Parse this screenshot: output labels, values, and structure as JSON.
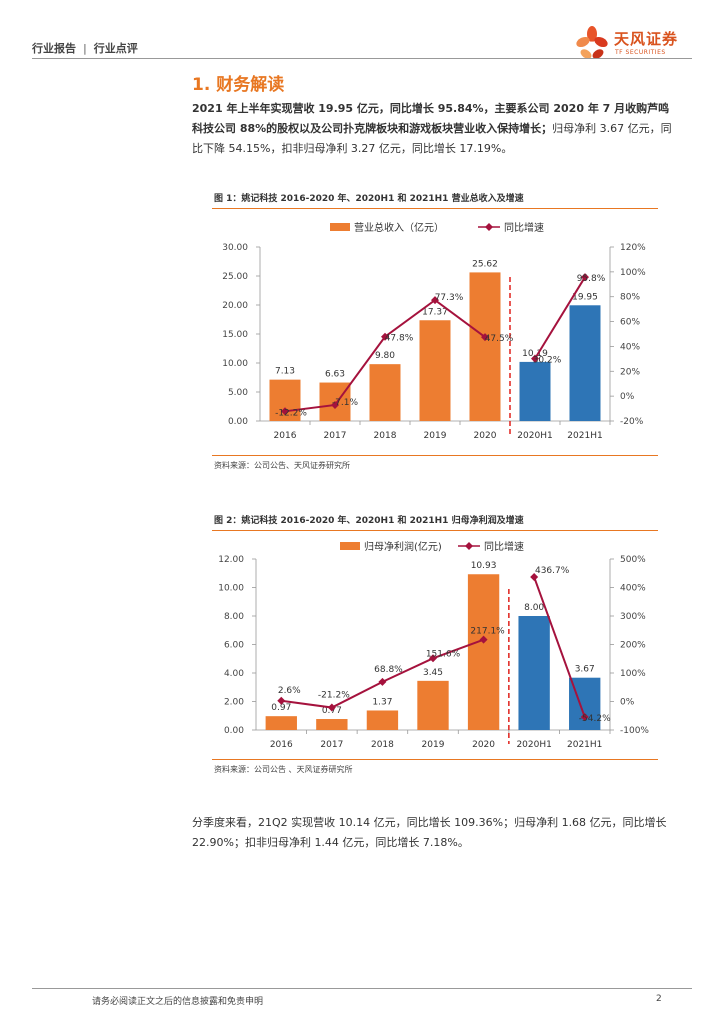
{
  "header": {
    "breadcrumb_1": "行业报告",
    "separator": "|",
    "breadcrumb_2": "行业点评",
    "logo_cn": "天风证券",
    "logo_en": "TF SECURITIES"
  },
  "section": {
    "title": "1. 财务解读",
    "para1_bold": "2021 年上半年实现营收 19.95 亿元，同比增长 95.84%，主要系公司 2020 年 7 月收购芦鸣科技公司 88%的股权以及公司扑克牌板块和游戏板块营业收入保持增长；",
    "para1_normal": "归母净利 3.67 亿元，同比下降 54.15%，扣非归母净利 3.27 亿元，同比增长 17.19%。",
    "para2": "分季度来看，21Q2 实现营收 10.14 亿元，同比增长 109.36%；归母净利 1.68 亿元，同比增长 22.90%；扣非归母净利 1.44 亿元，同比增长 7.18%。"
  },
  "figure1": {
    "title": "图 1：姚记科技 2016-2020 年、2020H1 和 2021H1 营业总收入及增速",
    "source": "资料来源：公司公告、天风证券研究所"
  },
  "figure2": {
    "title": "图 2：姚记科技 2016-2020 年、2020H1 和 2021H1 归母净利润及增速",
    "source": "资料来源：公司公告 、天风证券研究所"
  },
  "colors": {
    "orange": "#ED7D31",
    "blue": "#2E75B6",
    "line": "#A5123D",
    "divider": "#E0201B"
  },
  "chart_data": [
    {
      "type": "bar",
      "categories": [
        "2016",
        "2017",
        "2018",
        "2019",
        "2020",
        "2020H1",
        "2021H1"
      ],
      "series": [
        {
          "name": "营业总收入（亿元）",
          "values": [
            7.13,
            6.63,
            9.8,
            17.37,
            25.62,
            10.19,
            19.95
          ],
          "labels": [
            "7.13",
            "6.63",
            "9.80",
            "17.37",
            "25.62",
            "10.19",
            "19.95"
          ]
        },
        {
          "name": "同比增速",
          "type": "line",
          "axis": "right",
          "values": [
            -12.2,
            -7.1,
            47.8,
            77.3,
            47.5,
            30.2,
            95.8
          ],
          "labels": [
            "-12.2%",
            "-7.1%",
            "47.8%",
            "77.3%",
            "47.5%",
            "30.2%",
            "95.8%"
          ]
        }
      ],
      "ylim": [
        0,
        30
      ],
      "yticks": [
        "0.00",
        "5.00",
        "10.00",
        "15.00",
        "20.00",
        "25.00",
        "30.00"
      ],
      "y2lim": [
        -20,
        120
      ],
      "y2ticks": [
        "-20%",
        "0%",
        "20%",
        "40%",
        "60%",
        "80%",
        "100%",
        "120%"
      ],
      "legend": [
        "营业总收入（亿元）",
        "同比增速"
      ]
    },
    {
      "type": "bar",
      "categories": [
        "2016",
        "2017",
        "2018",
        "2019",
        "2020",
        "2020H1",
        "2021H1"
      ],
      "series": [
        {
          "name": "归母净利润(亿元)",
          "values": [
            0.97,
            0.77,
            1.37,
            3.45,
            10.93,
            8.0,
            3.67
          ],
          "labels": [
            "0.97",
            "0.77",
            "1.37",
            "3.45",
            "10.93",
            "8.00",
            "3.67"
          ]
        },
        {
          "name": "同比增速",
          "type": "line",
          "axis": "right",
          "values": [
            2.6,
            -21.2,
            68.8,
            151.6,
            217.1,
            436.7,
            -54.2
          ],
          "labels": [
            "2.6%",
            "-21.2%",
            "68.8%",
            "151.6%",
            "217.1%",
            "436.7%",
            "-54.2%"
          ]
        }
      ],
      "ylim": [
        0,
        12
      ],
      "yticks": [
        "0.00",
        "2.00",
        "4.00",
        "6.00",
        "8.00",
        "10.00",
        "12.00"
      ],
      "y2lim": [
        -100,
        500
      ],
      "y2ticks": [
        "-100%",
        "0%",
        "100%",
        "200%",
        "300%",
        "400%",
        "500%"
      ],
      "legend": [
        "归母净利润(亿元)",
        "同比增速"
      ]
    }
  ],
  "footer": {
    "disclaimer": "请务必阅读正文之后的信息披露和免责申明",
    "page": "2"
  }
}
